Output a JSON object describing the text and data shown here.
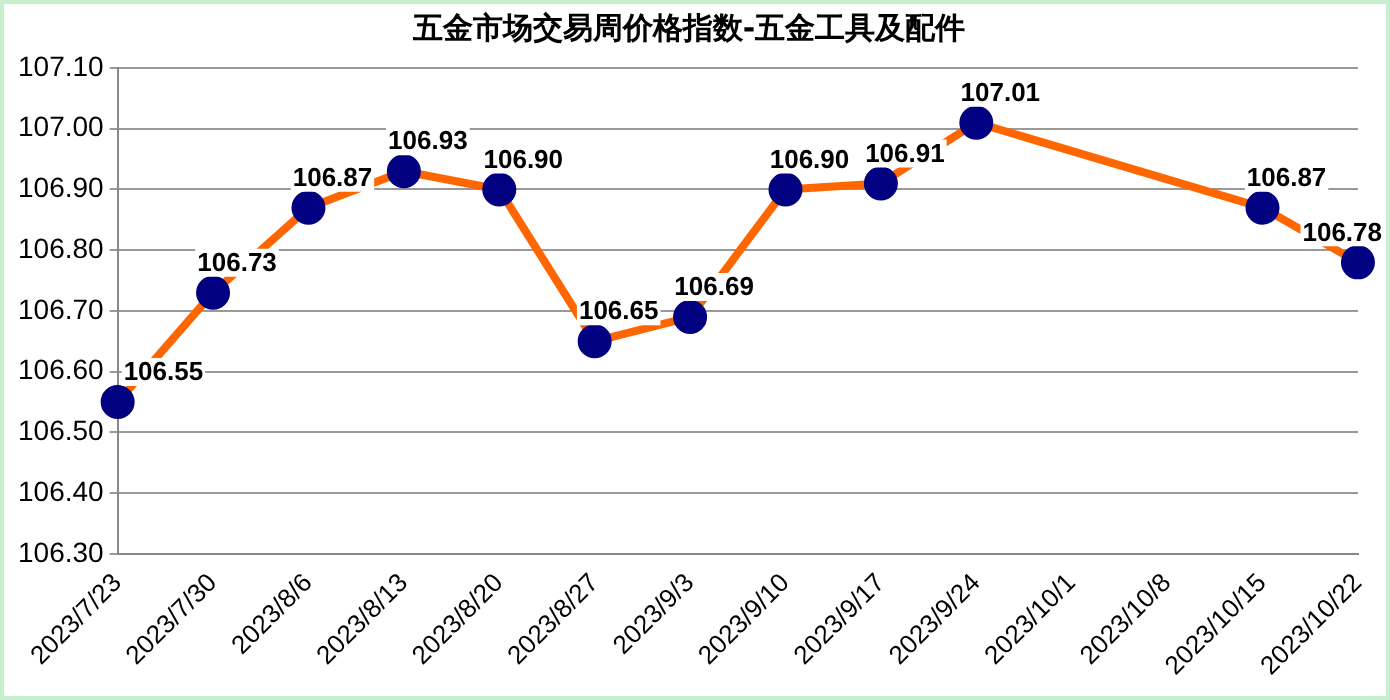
{
  "chart_data": {
    "type": "line",
    "title": "五金市场交易周价格指数-五金工具及配件",
    "categories": [
      "2023/7/23",
      "2023/7/30",
      "2023/8/6",
      "2023/8/13",
      "2023/8/20",
      "2023/8/27",
      "2023/9/3",
      "2023/9/10",
      "2023/9/17",
      "2023/9/24",
      "2023/10/1",
      "2023/10/8",
      "2023/10/15",
      "2023/10/22"
    ],
    "series": [
      {
        "color": "#ff6600",
        "values": [
          106.55,
          106.73,
          106.87,
          106.93,
          106.9,
          106.65,
          106.69,
          106.9,
          106.91,
          107.01,
          null,
          null,
          106.87,
          106.78
        ],
        "value_labels": [
          "106.55",
          "106.73",
          "106.87",
          "106.93",
          "106.90",
          "106.65",
          "106.69",
          "106.90",
          "106.91",
          "107.01",
          null,
          null,
          "106.87",
          "106.78"
        ]
      }
    ],
    "ylim": [
      106.3,
      107.1
    ],
    "yticks": [
      {
        "value": 106.3,
        "label": "106.30"
      },
      {
        "value": 106.4,
        "label": "106.40"
      },
      {
        "value": 106.5,
        "label": "106.50"
      },
      {
        "value": 106.6,
        "label": "106.60"
      },
      {
        "value": 106.7,
        "label": "106.70"
      },
      {
        "value": 106.8,
        "label": "106.80"
      },
      {
        "value": 106.9,
        "label": "106.90"
      },
      {
        "value": 107.0,
        "label": "107.00"
      },
      {
        "value": 107.1,
        "label": "107.10"
      }
    ],
    "grid": "y",
    "legend": false,
    "marker": "circle",
    "line_style": "solid"
  }
}
